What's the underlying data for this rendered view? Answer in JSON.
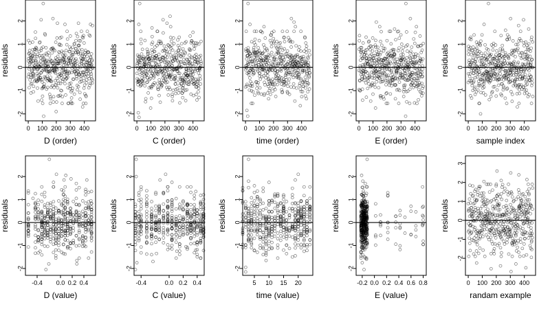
{
  "chart_data": [
    {
      "type": "scatter",
      "xlabel": "D (order)",
      "ylabel": "residuals",
      "xlim": [
        -20,
        480
      ],
      "xticks": [
        0,
        100,
        200,
        300,
        400
      ],
      "ylim": [
        -2.3,
        2.9
      ],
      "yticks": [
        -2,
        -1,
        0,
        1,
        2
      ],
      "refline_y": 0,
      "n": 460,
      "kind": "index",
      "points": [
        [
          107,
          2.75
        ],
        [
          92,
          2.05
        ],
        [
          176,
          2.1
        ],
        [
          208,
          1.9
        ],
        [
          262,
          1.85
        ],
        [
          358,
          1.9
        ],
        [
          444,
          1.85
        ],
        [
          458,
          1.8
        ],
        [
          12,
          1.05
        ],
        [
          52,
          1.25
        ],
        [
          121,
          1.4
        ],
        [
          237,
          1.3
        ],
        [
          300,
          1.35
        ],
        [
          341,
          1.15
        ],
        [
          398,
          1.05
        ],
        [
          37,
          -1.05
        ],
        [
          70,
          -1.45
        ],
        [
          110,
          -2.1
        ],
        [
          160,
          -1.35
        ],
        [
          199,
          -1.9
        ],
        [
          229,
          -1.2
        ],
        [
          306,
          -1.05
        ],
        [
          388,
          -1.7
        ],
        [
          393,
          -1.55
        ],
        [
          413,
          -1.25
        ]
      ]
    },
    {
      "type": "scatter",
      "xlabel": "C (order)",
      "ylabel": "residuals",
      "xlim": [
        -20,
        480
      ],
      "xticks": [
        0,
        100,
        200,
        300,
        400
      ],
      "ylim": [
        -2.3,
        2.9
      ],
      "yticks": [
        -2,
        -1,
        0,
        1,
        2
      ],
      "refline_y": 0,
      "n": 460,
      "kind": "index",
      "points": [
        [
          20,
          2.75
        ],
        [
          14,
          1.85
        ],
        [
          28,
          1.55
        ],
        [
          108,
          1.7
        ],
        [
          187,
          2.05
        ],
        [
          215,
          1.9
        ],
        [
          237,
          2.2
        ],
        [
          241,
          1.75
        ],
        [
          302,
          1.3
        ],
        [
          351,
          1.1
        ],
        [
          418,
          1.05
        ],
        [
          10,
          -1.95
        ],
        [
          16,
          -2.15
        ],
        [
          64,
          -1.35
        ],
        [
          98,
          -1.75
        ],
        [
          167,
          -1.5
        ],
        [
          253,
          -1.25
        ],
        [
          296,
          -1.1
        ],
        [
          327,
          -1.3
        ],
        [
          386,
          -1.15
        ],
        [
          438,
          -1.05
        ]
      ]
    },
    {
      "type": "scatter",
      "xlabel": "time (order)",
      "ylabel": "residuals",
      "xlim": [
        -20,
        480
      ],
      "xticks": [
        0,
        100,
        200,
        300,
        400
      ],
      "ylim": [
        -2.3,
        2.9
      ],
      "yticks": [
        -2,
        -1,
        0,
        1,
        2
      ],
      "refline_y": 0,
      "n": 460,
      "kind": "index",
      "points": [
        [
          18,
          2.75
        ],
        [
          32,
          1.85
        ],
        [
          64,
          1.55
        ],
        [
          132,
          1.75
        ],
        [
          188,
          1.5
        ],
        [
          275,
          1.3
        ],
        [
          327,
          2.1
        ],
        [
          346,
          1.95
        ],
        [
          356,
          1.75
        ],
        [
          395,
          1.55
        ],
        [
          430,
          1.05
        ],
        [
          10,
          -1.85
        ],
        [
          16,
          -2.1
        ],
        [
          54,
          -1.05
        ],
        [
          113,
          -1.15
        ],
        [
          165,
          -1.35
        ],
        [
          216,
          -1.25
        ],
        [
          300,
          -1.1
        ],
        [
          352,
          -1.45
        ],
        [
          391,
          -1.65
        ],
        [
          444,
          -1.05
        ]
      ]
    },
    {
      "type": "scatter",
      "xlabel": "E (order)",
      "ylabel": "residuals",
      "xlim": [
        -20,
        480
      ],
      "xticks": [
        0,
        100,
        200,
        300,
        400
      ],
      "ylim": [
        -2.3,
        2.9
      ],
      "yticks": [
        -2,
        -1,
        0,
        1,
        2
      ],
      "refline_y": 0,
      "n": 460,
      "kind": "index",
      "points": [
        [
          335,
          2.75
        ],
        [
          124,
          1.95
        ],
        [
          148,
          1.75
        ],
        [
          254,
          1.65
        ],
        [
          299,
          1.4
        ],
        [
          367,
          2.1
        ],
        [
          410,
          1.75
        ],
        [
          436,
          1.35
        ],
        [
          30,
          1.05
        ],
        [
          200,
          1.15
        ],
        [
          84,
          -1.45
        ],
        [
          100,
          -1.15
        ],
        [
          118,
          -1.75
        ],
        [
          156,
          -1.3
        ],
        [
          198,
          -1.1
        ],
        [
          260,
          -1.35
        ],
        [
          319,
          -1.25
        ],
        [
          333,
          -2.1
        ],
        [
          362,
          -1.55
        ],
        [
          438,
          -1.05
        ]
      ]
    },
    {
      "type": "scatter",
      "xlabel": "sample index",
      "ylabel": "residuals",
      "xlim": [
        -20,
        480
      ],
      "xticks": [
        0,
        100,
        200,
        300,
        400
      ],
      "ylim": [
        -2.3,
        2.9
      ],
      "yticks": [
        -2,
        -1,
        0,
        1,
        2
      ],
      "refline_y": 0,
      "n": 460,
      "kind": "index",
      "points": [
        [
          144,
          2.75
        ],
        [
          113,
          1.85
        ],
        [
          190,
          1.55
        ],
        [
          266,
          1.6
        ],
        [
          302,
          2.1
        ],
        [
          359,
          1.8
        ],
        [
          394,
          2.05
        ],
        [
          431,
          1.65
        ],
        [
          452,
          1.3
        ],
        [
          20,
          1.2
        ],
        [
          59,
          -1.05
        ],
        [
          80,
          -1.55
        ],
        [
          88,
          -2.0
        ],
        [
          162,
          -1.25
        ],
        [
          233,
          -1.15
        ],
        [
          350,
          -1.7
        ],
        [
          362,
          -1.55
        ],
        [
          418,
          -1.1
        ],
        [
          460,
          -1.25
        ]
      ]
    },
    {
      "type": "scatter",
      "xlabel": "D (value)",
      "ylabel": "residuals",
      "xlim": [
        -0.6,
        0.6
      ],
      "xticks": [
        -0.4,
        0.0,
        0.2,
        0.4
      ],
      "xtick_labels": [
        "-0.4",
        "0.0",
        "0.2",
        "0.4"
      ],
      "ylim": [
        -2.3,
        2.9
      ],
      "yticks": [
        -2,
        -1,
        0,
        1,
        2
      ],
      "refline_y": 0,
      "n": 460,
      "kind": "value",
      "x_levels": [
        -0.55,
        -0.43,
        -0.38,
        -0.32,
        -0.27,
        -0.22,
        -0.17,
        -0.12,
        -0.08,
        -0.03,
        0.02,
        0.05,
        0.08,
        0.12,
        0.17,
        0.22,
        0.27,
        0.32,
        0.38,
        0.43,
        0.48,
        0.53
      ],
      "points": [
        [
          -0.19,
          2.75
        ],
        [
          -0.07,
          2.1
        ],
        [
          -0.12,
          1.75
        ],
        [
          0.06,
          1.85
        ],
        [
          0.09,
          2.05
        ],
        [
          0.18,
          1.9
        ],
        [
          0.27,
          1.7
        ],
        [
          0.45,
          1.85
        ],
        [
          -0.47,
          1.05
        ],
        [
          0.52,
          0.95
        ],
        [
          -0.2,
          -1.8
        ],
        [
          -0.25,
          -2.05
        ],
        [
          -0.35,
          -1.25
        ],
        [
          0.05,
          -1.35
        ],
        [
          0.13,
          -1.05
        ],
        [
          0.28,
          -1.8
        ],
        [
          0.28,
          -1.65
        ],
        [
          0.41,
          -1.0
        ]
      ]
    },
    {
      "type": "scatter",
      "xlabel": "C (value)",
      "ylabel": "residuals",
      "xlim": [
        -0.5,
        0.5
      ],
      "xticks": [
        -0.4,
        0.0,
        0.2,
        0.4
      ],
      "xtick_labels": [
        "-0.4",
        "0.0",
        "0.2",
        "0.4"
      ],
      "ylim": [
        -2.3,
        2.9
      ],
      "yticks": [
        -2,
        -1,
        0,
        1,
        2
      ],
      "refline_y": 0,
      "n": 460,
      "kind": "value",
      "x_levels": [
        -0.48,
        -0.43,
        -0.4,
        -0.32,
        -0.25,
        -0.19,
        -0.14,
        -0.08,
        -0.02,
        0.04,
        0.1,
        0.15,
        0.2,
        0.26,
        0.31,
        0.36,
        0.4,
        0.45,
        0.49
      ],
      "points": [
        [
          -0.47,
          2.75
        ],
        [
          -0.47,
          2.0
        ],
        [
          -0.13,
          1.85
        ],
        [
          -0.05,
          2.1
        ],
        [
          0.04,
          1.75
        ],
        [
          0.15,
          1.55
        ],
        [
          0.38,
          1.35
        ],
        [
          -0.48,
          -2.05
        ],
        [
          -0.46,
          -1.75
        ],
        [
          -0.23,
          -1.7
        ],
        [
          -0.18,
          -1.35
        ],
        [
          0.01,
          -1.1
        ],
        [
          0.11,
          -1.25
        ],
        [
          0.24,
          -1.05
        ],
        [
          0.38,
          -1.2
        ]
      ]
    },
    {
      "type": "scatter",
      "xlabel": "time (value)",
      "ylabel": "residuals",
      "xlim": [
        1,
        25
      ],
      "xticks": [
        5,
        10,
        15,
        20
      ],
      "xtick_labels": [
        "5",
        "10",
        "15",
        "20"
      ],
      "ylim": [
        -2.3,
        2.9
      ],
      "yticks": [
        -2,
        -1,
        0,
        1,
        2
      ],
      "refline_y": 0,
      "n": 460,
      "kind": "value",
      "x_levels": [
        1,
        2,
        3,
        4,
        5,
        6,
        7,
        8,
        9,
        10,
        11,
        12,
        13,
        14,
        15,
        16,
        17,
        18,
        19,
        20,
        21,
        22,
        23,
        24
      ],
      "points": [
        [
          3,
          2.75
        ],
        [
          3,
          1.8
        ],
        [
          5,
          1.6
        ],
        [
          8,
          1.5
        ],
        [
          10,
          1.75
        ],
        [
          13,
          1.25
        ],
        [
          19,
          1.85
        ],
        [
          20,
          2.1
        ],
        [
          22,
          1.55
        ],
        [
          24,
          1.05
        ],
        [
          2,
          -1.95
        ],
        [
          2,
          -2.15
        ],
        [
          4,
          -1.1
        ],
        [
          6,
          -1.3
        ],
        [
          9,
          -1.65
        ],
        [
          11,
          -1.1
        ],
        [
          15,
          -1.2
        ],
        [
          18,
          -1.5
        ],
        [
          23,
          -1.05
        ]
      ]
    },
    {
      "type": "scatter",
      "xlabel": "E (value)",
      "ylabel": "residuals",
      "xlim": [
        -0.3,
        0.85
      ],
      "xticks": [
        -0.2,
        0.0,
        0.2,
        0.4,
        0.6,
        0.8
      ],
      "xtick_labels": [
        "-0.2",
        "0.0",
        "0.2",
        "0.4",
        "0.6",
        "0.8"
      ],
      "ylim": [
        -2.3,
        2.9
      ],
      "yticks": [
        -2,
        -1,
        0,
        1,
        2
      ],
      "refline_y": 0,
      "n": 460,
      "kind": "value",
      "x_levels": [
        -0.22,
        -0.21,
        -0.2,
        -0.19,
        -0.18,
        -0.17,
        -0.16,
        -0.15,
        -0.14,
        -0.13,
        -0.12
      ],
      "x_levels_sparse": [
        0.02,
        0.1,
        0.22,
        0.35,
        0.42,
        0.5,
        0.6,
        0.68,
        0.79,
        0.8
      ],
      "points": [
        [
          -0.12,
          2.75
        ],
        [
          -0.21,
          2.05
        ],
        [
          -0.19,
          1.8
        ],
        [
          -0.15,
          1.7
        ],
        [
          -0.2,
          -1.75
        ],
        [
          -0.17,
          -2.05
        ],
        [
          -0.13,
          -1.6
        ],
        [
          0.8,
          -0.95
        ]
      ]
    },
    {
      "type": "scatter",
      "xlabel": "randam example",
      "ylabel": "residuals",
      "xlim": [
        -20,
        480
      ],
      "xticks": [
        0,
        100,
        200,
        300,
        400
      ],
      "ylim": [
        -2.9,
        3.4
      ],
      "yticks": [
        -2,
        -1,
        0,
        1,
        2,
        3
      ],
      "refline_y": 0,
      "n": 460,
      "kind": "random",
      "points": [
        [
          205,
          2.6
        ],
        [
          303,
          2.5
        ],
        [
          361,
          2.4
        ],
        [
          418,
          2.15
        ],
        [
          12,
          1.85
        ],
        [
          112,
          2.05
        ],
        [
          235,
          2.1
        ],
        [
          60,
          -2.25
        ],
        [
          163,
          -2.55
        ],
        [
          230,
          -2.4
        ],
        [
          305,
          -2.7
        ],
        [
          340,
          -2.3
        ],
        [
          411,
          -2.5
        ],
        [
          450,
          -1.95
        ]
      ]
    }
  ]
}
